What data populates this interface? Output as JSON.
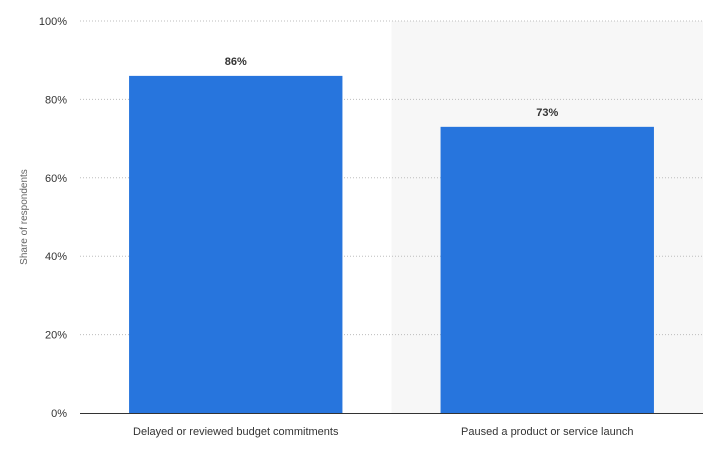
{
  "chart_data": {
    "type": "bar",
    "categories": [
      "Delayed or reviewed budget commitments",
      "Paused a product or service launch"
    ],
    "values": [
      86,
      73
    ],
    "value_labels": [
      "86%",
      "73%"
    ],
    "ylabel": "Share of respondents",
    "ylim": [
      0,
      100
    ],
    "yticks": [
      "0%",
      "20%",
      "40%",
      "60%",
      "80%",
      "100%"
    ],
    "ytick_values": [
      0,
      20,
      40,
      60,
      80,
      100
    ],
    "grid": true,
    "highlighted_category_index": 1,
    "colors": {
      "bar": "#2775dd",
      "highlight_band": "#f7f7f7"
    }
  }
}
